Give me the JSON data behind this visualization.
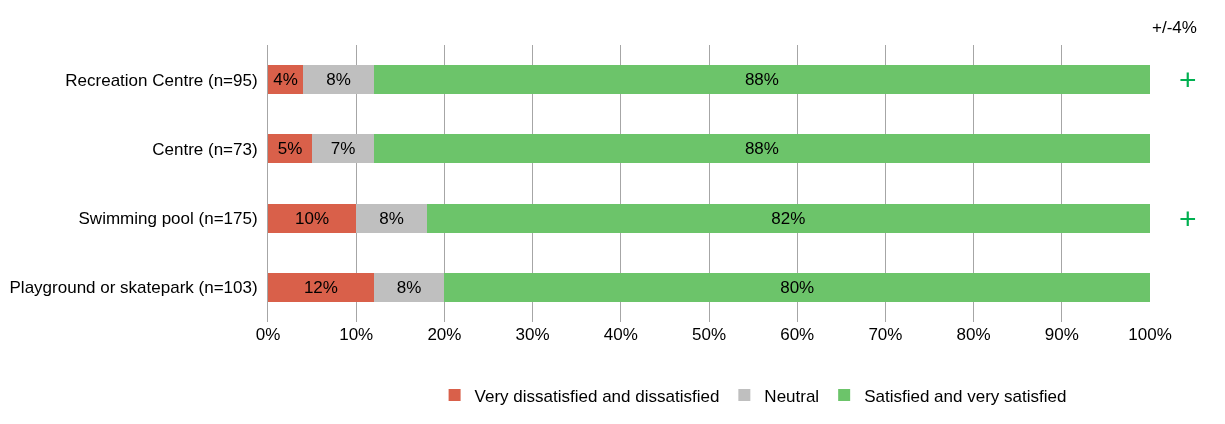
{
  "chart_data": {
    "type": "bar",
    "orientation": "horizontal",
    "stacked": true,
    "categories": [
      "Recreation Centre (n=95)",
      "Centre (n=73)",
      "Swimming pool (n=175)",
      "Playground or skatepark (n=103)"
    ],
    "series": [
      {
        "name": "Very dissatisfied and dissatisfied",
        "color": "#d9604a",
        "values": [
          4,
          5,
          10,
          12
        ],
        "value_labels": [
          "4%",
          "5%",
          "10%",
          "12%"
        ]
      },
      {
        "name": "Neutral",
        "color": "#bfbfbf",
        "values": [
          8,
          7,
          8,
          8
        ],
        "value_labels": [
          "8%",
          "7%",
          "8%",
          "8%"
        ]
      },
      {
        "name": "Satisfied and very satisfied",
        "color": "#6cc46a",
        "values": [
          88,
          88,
          82,
          80
        ],
        "value_labels": [
          "88%",
          "88%",
          "82%",
          "80%"
        ]
      }
    ],
    "xlim": [
      0,
      100
    ],
    "xticks": [
      {
        "value": 0,
        "label": "0%"
      },
      {
        "value": 10,
        "label": "10%"
      },
      {
        "value": 20,
        "label": "20%"
      },
      {
        "value": 30,
        "label": "30%"
      },
      {
        "value": 40,
        "label": "40%"
      },
      {
        "value": 50,
        "label": "50%"
      },
      {
        "value": 60,
        "label": "60%"
      },
      {
        "value": 70,
        "label": "70%"
      },
      {
        "value": 80,
        "label": "80%"
      },
      {
        "value": 90,
        "label": "90%"
      },
      {
        "value": 100,
        "label": "100%"
      }
    ],
    "grid": "x",
    "legend": "bottom",
    "annotations": [
      "+/-4%",
      "+",
      "+"
    ]
  }
}
